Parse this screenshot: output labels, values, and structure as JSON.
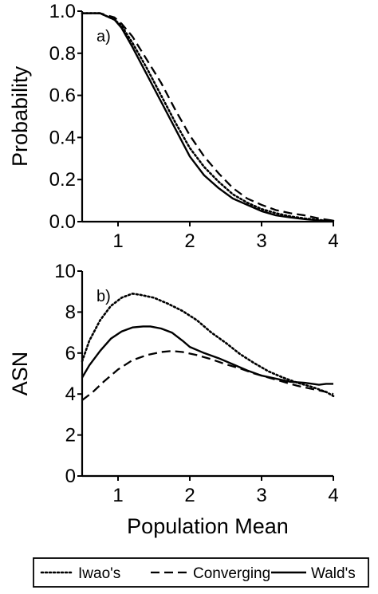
{
  "chart_data": [
    {
      "type": "line",
      "panel_label": "a)",
      "ylabel": "Probability",
      "xlim": [
        0.5,
        4
      ],
      "ylim": [
        0,
        1
      ],
      "xticks": [
        1,
        2,
        3,
        4
      ],
      "yticks": [
        0.0,
        0.2,
        0.4,
        0.6,
        0.8,
        1.0
      ],
      "ytick_labels": [
        "0.0",
        "0.2",
        "0.4",
        "0.6",
        "0.8",
        "1.0"
      ],
      "grid": false,
      "series": [
        {
          "name": "Iwao's",
          "style": "dotted",
          "x": [
            0.5,
            0.75,
            0.95,
            1.05,
            1.2,
            1.4,
            1.6,
            1.8,
            2.0,
            2.2,
            2.4,
            2.6,
            2.8,
            3.0,
            3.2,
            3.4,
            3.6,
            3.8,
            4.0
          ],
          "y": [
            0.99,
            0.99,
            0.96,
            0.93,
            0.85,
            0.73,
            0.6,
            0.47,
            0.35,
            0.26,
            0.19,
            0.13,
            0.09,
            0.06,
            0.04,
            0.025,
            0.015,
            0.008,
            0.004
          ]
        },
        {
          "name": "Converging",
          "style": "dashed",
          "x": [
            0.5,
            0.75,
            0.95,
            1.05,
            1.2,
            1.4,
            1.6,
            1.8,
            2.0,
            2.2,
            2.4,
            2.6,
            2.8,
            3.0,
            3.2,
            3.4,
            3.6,
            3.8,
            4.0
          ],
          "y": [
            0.99,
            0.99,
            0.97,
            0.94,
            0.88,
            0.77,
            0.66,
            0.53,
            0.41,
            0.31,
            0.23,
            0.16,
            0.11,
            0.08,
            0.055,
            0.04,
            0.03,
            0.015,
            0.005
          ]
        },
        {
          "name": "Wald's",
          "style": "solid",
          "x": [
            0.5,
            0.75,
            0.95,
            1.05,
            1.2,
            1.4,
            1.6,
            1.8,
            2.0,
            2.2,
            2.4,
            2.6,
            2.8,
            3.0,
            3.2,
            3.4,
            3.6,
            3.8,
            4.0
          ],
          "y": [
            0.99,
            0.99,
            0.96,
            0.92,
            0.83,
            0.7,
            0.57,
            0.44,
            0.31,
            0.22,
            0.16,
            0.11,
            0.08,
            0.05,
            0.03,
            0.02,
            0.012,
            0.006,
            0.003
          ]
        }
      ]
    },
    {
      "type": "line",
      "panel_label": "b)",
      "ylabel": "ASN",
      "xlabel": "Population Mean",
      "xlim": [
        0.5,
        4
      ],
      "ylim": [
        0,
        10
      ],
      "xticks": [
        1,
        2,
        3,
        4
      ],
      "yticks": [
        0,
        2,
        4,
        6,
        8,
        10
      ],
      "ytick_labels": [
        "0",
        "2",
        "4",
        "6",
        "8",
        "10"
      ],
      "grid": false,
      "series": [
        {
          "name": "Iwao's",
          "style": "dotted",
          "x": [
            0.5,
            0.6,
            0.75,
            0.9,
            1.05,
            1.2,
            1.3,
            1.5,
            1.7,
            1.9,
            2.1,
            2.3,
            2.5,
            2.7,
            2.9,
            3.1,
            3.3,
            3.5,
            3.7,
            3.9,
            4.0
          ],
          "y": [
            5.6,
            6.6,
            7.6,
            8.3,
            8.7,
            8.9,
            8.85,
            8.7,
            8.4,
            8.05,
            7.6,
            7.0,
            6.5,
            5.95,
            5.5,
            5.1,
            4.8,
            4.55,
            4.35,
            4.1,
            3.9
          ]
        },
        {
          "name": "Converging",
          "style": "dashed",
          "x": [
            0.5,
            0.65,
            0.8,
            1.0,
            1.2,
            1.4,
            1.6,
            1.75,
            1.9,
            2.1,
            2.3,
            2.5,
            2.7,
            2.9,
            3.1,
            3.3,
            3.5,
            3.7,
            3.9,
            4.0
          ],
          "y": [
            3.7,
            4.1,
            4.6,
            5.2,
            5.65,
            5.9,
            6.05,
            6.1,
            6.05,
            5.9,
            5.7,
            5.45,
            5.25,
            5.0,
            4.8,
            4.6,
            4.4,
            4.25,
            4.1,
            4.0
          ]
        },
        {
          "name": "Wald's",
          "style": "solid",
          "x": [
            0.5,
            0.6,
            0.75,
            0.9,
            1.05,
            1.2,
            1.35,
            1.45,
            1.6,
            1.75,
            1.9,
            2.0,
            2.2,
            2.4,
            2.6,
            2.8,
            3.0,
            3.2,
            3.4,
            3.6,
            3.8,
            3.9,
            4.0
          ],
          "y": [
            4.8,
            5.4,
            6.1,
            6.7,
            7.05,
            7.25,
            7.3,
            7.3,
            7.2,
            7.0,
            6.6,
            6.3,
            6.0,
            5.75,
            5.45,
            5.15,
            4.9,
            4.75,
            4.6,
            4.55,
            4.45,
            4.5,
            4.5
          ]
        }
      ]
    }
  ]
}
